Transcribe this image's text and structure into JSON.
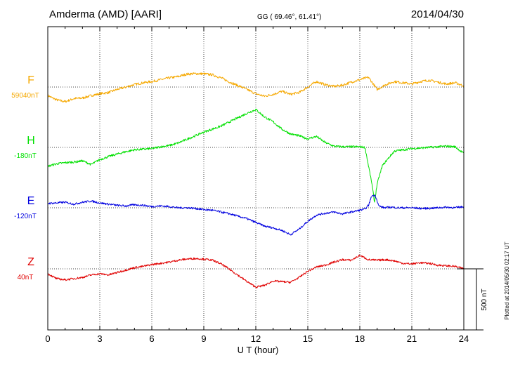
{
  "header": {
    "station": "Amderma (AMD)  [AARI]",
    "coords": "GG ( 69.46°,  61.41°)",
    "date": "2014/04/30"
  },
  "plotted_note": "Plotted at 2014/05/30 02:17 UT",
  "scale_label": "500 nT",
  "chart_data": {
    "type": "line",
    "title": "Amderma (AMD)  [AARI]",
    "xlabel": "U T (hour)",
    "ylabel": "",
    "xlim": [
      0,
      24
    ],
    "x_ticks": [
      0,
      3,
      6,
      9,
      12,
      15,
      18,
      21,
      24
    ],
    "x_tick_labels": [
      "0",
      "3",
      "6",
      "9",
      "12",
      "15",
      "18",
      "21",
      "24"
    ],
    "grid": true,
    "units": "nT",
    "scale_bar_nT": 500,
    "series": [
      {
        "name": "F",
        "baseline_label": "59040nT",
        "baseline_nT": 59040,
        "color": "#f5a800",
        "x": [
          0,
          0.5,
          1,
          1.5,
          2,
          2.5,
          3,
          3.5,
          4,
          4.5,
          5,
          5.5,
          6,
          6.5,
          7,
          7.5,
          8,
          8.5,
          9,
          9.5,
          10,
          10.5,
          11,
          11.5,
          12,
          12.5,
          13,
          13.5,
          14,
          14.5,
          15,
          15.5,
          16,
          16.5,
          17,
          17.5,
          18,
          18.5,
          19,
          19.5,
          20,
          20.5,
          21,
          21.5,
          22,
          22.5,
          23,
          23.5,
          24
        ],
        "y": [
          -70,
          -105,
          -120,
          -95,
          -90,
          -70,
          -55,
          -45,
          -20,
          0,
          20,
          35,
          45,
          60,
          75,
          85,
          105,
          110,
          108,
          100,
          75,
          40,
          10,
          -20,
          -55,
          -75,
          -60,
          -35,
          -60,
          -45,
          0,
          45,
          20,
          5,
          15,
          40,
          60,
          80,
          -20,
          20,
          45,
          35,
          25,
          45,
          55,
          40,
          25,
          35,
          10
        ]
      },
      {
        "name": "H",
        "baseline_label": "-180nT",
        "baseline_nT": -180,
        "color": "#00e000",
        "x": [
          0,
          0.5,
          1,
          1.5,
          2,
          2.5,
          3,
          3.5,
          4,
          4.5,
          5,
          5.5,
          6,
          6.5,
          7,
          7.5,
          8,
          8.5,
          9,
          9.5,
          10,
          10.5,
          11,
          11.5,
          12,
          12.5,
          13,
          13.5,
          14,
          14.5,
          15,
          15.5,
          16,
          16.5,
          17,
          17.5,
          18,
          18.3,
          18.5,
          18.7,
          18.85,
          19,
          19.3,
          19.7,
          20,
          20.5,
          21,
          21.5,
          22,
          22.5,
          23,
          23.5,
          24
        ],
        "y": [
          -155,
          -135,
          -125,
          -120,
          -110,
          -140,
          -100,
          -75,
          -55,
          -35,
          -20,
          -15,
          -10,
          5,
          15,
          35,
          65,
          95,
          125,
          150,
          175,
          210,
          245,
          280,
          310,
          250,
          210,
          150,
          110,
          95,
          70,
          90,
          40,
          10,
          5,
          5,
          5,
          0,
          -150,
          -300,
          -450,
          -300,
          -150,
          -80,
          -30,
          -20,
          -10,
          -5,
          0,
          5,
          10,
          5,
          -50
        ]
      },
      {
        "name": "E",
        "baseline_label": "-120nT",
        "baseline_nT": -120,
        "color": "#0000e0",
        "x": [
          0,
          0.5,
          1,
          1.5,
          2,
          2.5,
          3,
          3.5,
          4,
          4.5,
          5,
          5.5,
          6,
          6.5,
          7,
          7.5,
          8,
          8.5,
          9,
          9.5,
          10,
          10.5,
          11,
          11.5,
          12,
          12.5,
          13,
          13.5,
          14,
          14.5,
          15,
          15.5,
          16,
          16.5,
          17,
          17.5,
          18,
          18.3,
          18.5,
          18.7,
          18.9,
          19.1,
          19.4,
          19.8,
          20.2,
          20.5,
          21,
          21.5,
          22,
          22.5,
          23,
          23.5,
          24
        ],
        "y": [
          35,
          40,
          45,
          30,
          45,
          55,
          40,
          30,
          20,
          15,
          25,
          20,
          10,
          15,
          10,
          0,
          0,
          -5,
          -15,
          -20,
          -35,
          -50,
          -70,
          -90,
          -120,
          -150,
          -165,
          -185,
          -220,
          -175,
          -110,
          -60,
          -45,
          -35,
          -50,
          -35,
          -20,
          -10,
          20,
          100,
          100,
          15,
          0,
          5,
          0,
          0,
          0,
          -5,
          -5,
          0,
          5,
          0,
          10
        ]
      },
      {
        "name": "Z",
        "baseline_label": "40nT",
        "baseline_nT": 40,
        "color": "#e00000",
        "x": [
          0,
          0.5,
          1,
          1.5,
          2,
          2.5,
          3,
          3.5,
          4,
          4.5,
          5,
          5.5,
          6,
          6.5,
          7,
          7.5,
          8,
          8.5,
          9,
          9.5,
          10,
          10.5,
          11,
          11.5,
          12,
          12.5,
          13,
          13.5,
          14,
          14.5,
          15,
          15.5,
          16,
          16.5,
          17,
          17.5,
          18,
          18.5,
          19,
          19.5,
          20,
          20.5,
          21,
          21.5,
          22,
          22.5,
          23,
          23.5,
          24
        ],
        "y": [
          -40,
          -80,
          -90,
          -80,
          -70,
          -50,
          -40,
          -50,
          -30,
          -10,
          10,
          20,
          35,
          45,
          55,
          70,
          80,
          85,
          80,
          70,
          40,
          -5,
          -55,
          -105,
          -150,
          -135,
          -100,
          -105,
          -110,
          -70,
          -20,
          15,
          30,
          55,
          75,
          70,
          110,
          75,
          70,
          75,
          65,
          45,
          40,
          50,
          45,
          30,
          25,
          20,
          0
        ]
      }
    ]
  }
}
